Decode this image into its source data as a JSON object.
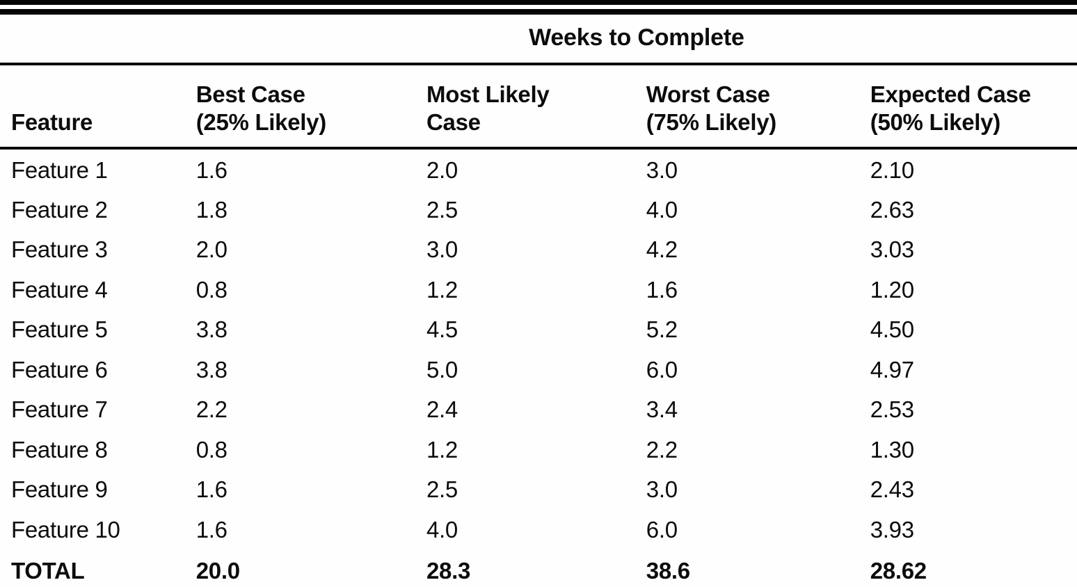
{
  "page": {
    "background": "#fefefe",
    "text_color": "#0c0c0c",
    "rule_color": "#050505"
  },
  "table": {
    "span_header": "Weeks to Complete",
    "headers": {
      "feature": "Feature",
      "best": "Best Case\n(25% Likely)",
      "most_likely": "Most Likely\nCase",
      "worst": "Worst Case\n(75% Likely)",
      "expected": "Expected Case\n(50% Likely)"
    },
    "rows": [
      {
        "feature": "Feature 1",
        "best": "1.6",
        "most_likely": "2.0",
        "worst": "3.0",
        "expected": "2.10"
      },
      {
        "feature": "Feature 2",
        "best": "1.8",
        "most_likely": "2.5",
        "worst": "4.0",
        "expected": "2.63"
      },
      {
        "feature": "Feature 3",
        "best": "2.0",
        "most_likely": "3.0",
        "worst": "4.2",
        "expected": "3.03"
      },
      {
        "feature": "Feature 4",
        "best": "0.8",
        "most_likely": "1.2",
        "worst": "1.6",
        "expected": "1.20"
      },
      {
        "feature": "Feature 5",
        "best": "3.8",
        "most_likely": "4.5",
        "worst": "5.2",
        "expected": "4.50"
      },
      {
        "feature": "Feature 6",
        "best": "3.8",
        "most_likely": "5.0",
        "worst": "6.0",
        "expected": "4.97"
      },
      {
        "feature": "Feature 7",
        "best": "2.2",
        "most_likely": "2.4",
        "worst": "3.4",
        "expected": "2.53"
      },
      {
        "feature": "Feature 8",
        "best": "0.8",
        "most_likely": "1.2",
        "worst": "2.2",
        "expected": "1.30"
      },
      {
        "feature": "Feature 9",
        "best": "1.6",
        "most_likely": "2.5",
        "worst": "3.0",
        "expected": "2.43"
      },
      {
        "feature": "Feature 10",
        "best": "1.6",
        "most_likely": "4.0",
        "worst": "6.0",
        "expected": "3.93"
      }
    ],
    "total": {
      "feature": "TOTAL",
      "best": "20.0",
      "most_likely": "28.3",
      "worst": "38.6",
      "expected": "28.62"
    }
  },
  "chart_data": {
    "type": "table",
    "title": "Weeks to Complete",
    "columns": [
      "Feature",
      "Best Case (25% Likely)",
      "Most Likely Case",
      "Worst Case (75% Likely)",
      "Expected Case (50% Likely)"
    ],
    "rows": [
      [
        "Feature 1",
        1.6,
        2.0,
        3.0,
        2.1
      ],
      [
        "Feature 2",
        1.8,
        2.5,
        4.0,
        2.63
      ],
      [
        "Feature 3",
        2.0,
        3.0,
        4.2,
        3.03
      ],
      [
        "Feature 4",
        0.8,
        1.2,
        1.6,
        1.2
      ],
      [
        "Feature 5",
        3.8,
        4.5,
        5.2,
        4.5
      ],
      [
        "Feature 6",
        3.8,
        5.0,
        6.0,
        4.97
      ],
      [
        "Feature 7",
        2.2,
        2.4,
        3.4,
        2.53
      ],
      [
        "Feature 8",
        0.8,
        1.2,
        2.2,
        1.3
      ],
      [
        "Feature 9",
        1.6,
        2.5,
        3.0,
        2.43
      ],
      [
        "Feature 10",
        1.6,
        4.0,
        6.0,
        3.93
      ],
      [
        "TOTAL",
        20.0,
        28.3,
        38.6,
        28.62
      ]
    ]
  }
}
